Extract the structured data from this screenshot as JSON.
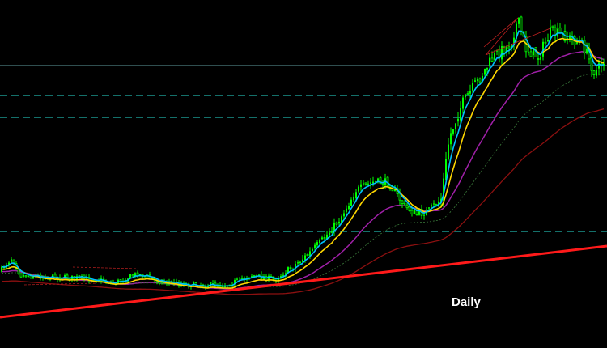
{
  "label": "Daily"
}
